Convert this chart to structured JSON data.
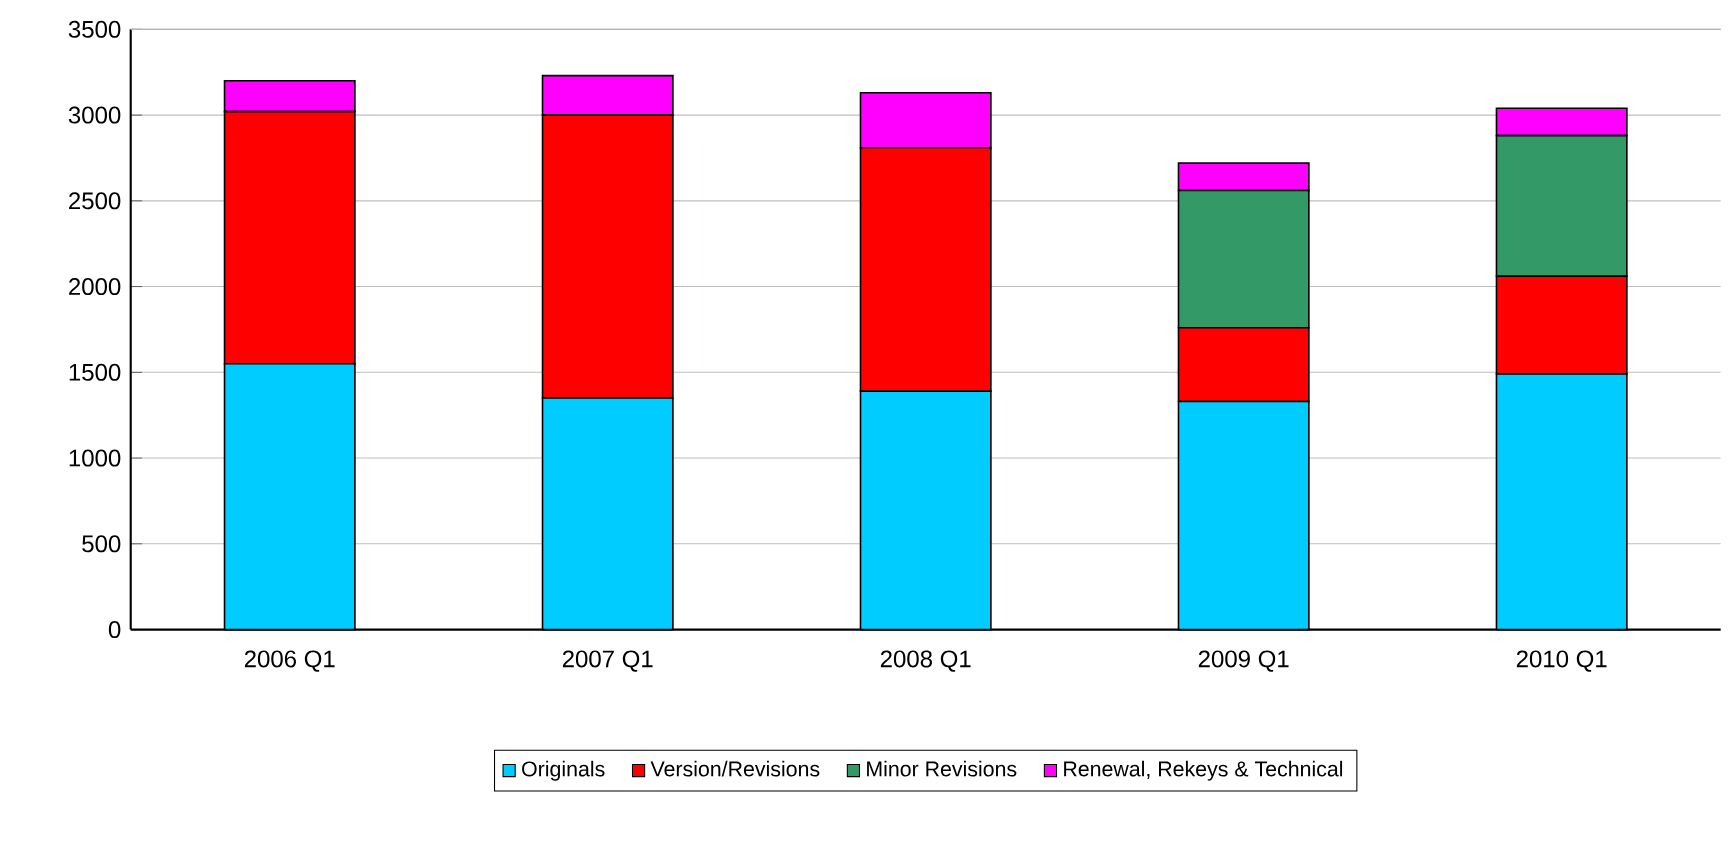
{
  "chart_data": {
    "type": "bar",
    "stacked": true,
    "categories": [
      "2006 Q1",
      "2007 Q1",
      "2008 Q1",
      "2009 Q1",
      "2010 Q1"
    ],
    "series": [
      {
        "name": "Originals",
        "color": "#00ccff",
        "values": [
          1550,
          1350,
          1390,
          1330,
          1490
        ]
      },
      {
        "name": "Version/Revisions",
        "color": "#ff0000",
        "values": [
          1470,
          1650,
          1420,
          430,
          570
        ]
      },
      {
        "name": "Minor Revisions",
        "color": "#339966",
        "values": [
          null,
          null,
          null,
          800,
          820
        ]
      },
      {
        "name": "Renewal, Rekeys & Technical",
        "color": "#ff00ff",
        "values": [
          180,
          230,
          320,
          160,
          160
        ]
      }
    ],
    "ylim": [
      0,
      3500
    ],
    "yticks": [
      0,
      500,
      1000,
      1500,
      2000,
      2500,
      3000,
      3500
    ],
    "grid": "y",
    "legend": "bottom"
  }
}
